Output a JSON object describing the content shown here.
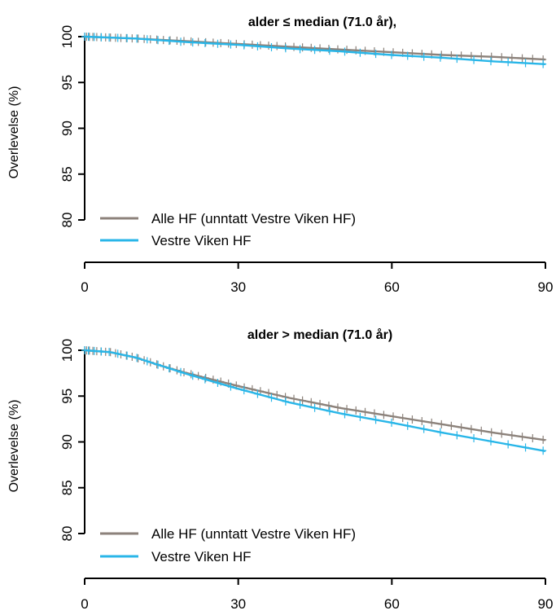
{
  "chart_data": [
    {
      "type": "line",
      "title": "alder ≤ median (71.0 år),",
      "ylabel": "Overlevelse (%)",
      "xlabel": "",
      "xlim": [
        0,
        90
      ],
      "ylim": [
        80,
        100
      ],
      "x_ticks": [
        "0",
        "30",
        "60",
        "90"
      ],
      "y_ticks": [
        "80",
        "85",
        "90",
        "95",
        "100"
      ],
      "legend_position": "bottom-left",
      "grid": false,
      "series": [
        {
          "name": "Alle HF (unntatt Vestre Viken HF)",
          "color": "#8c827b",
          "x": [
            0,
            10,
            20,
            30,
            40,
            50,
            60,
            70,
            80,
            90
          ],
          "y": [
            100,
            99.8,
            99.5,
            99.2,
            98.9,
            98.6,
            98.3,
            98.0,
            97.8,
            97.5
          ]
        },
        {
          "name": "Vestre Viken HF",
          "color": "#29b6e8",
          "x": [
            0,
            10,
            20,
            30,
            40,
            50,
            60,
            70,
            80,
            90
          ],
          "y": [
            100,
            99.8,
            99.4,
            99.1,
            98.7,
            98.4,
            98.0,
            97.7,
            97.3,
            97.0
          ]
        }
      ]
    },
    {
      "type": "line",
      "title": "alder > median (71.0 år)",
      "ylabel": "Overlevelse (%)",
      "xlabel": "",
      "xlim": [
        0,
        90
      ],
      "ylim": [
        80,
        100
      ],
      "x_ticks": [
        "0",
        "30",
        "60",
        "90"
      ],
      "y_ticks": [
        "80",
        "85",
        "90",
        "95",
        "100"
      ],
      "legend_position": "bottom-left",
      "grid": false,
      "series": [
        {
          "name": "Alle HF (unntatt Vestre Viken HF)",
          "color": "#8c827b",
          "x": [
            0,
            5,
            10,
            15,
            20,
            25,
            30,
            40,
            50,
            60,
            70,
            80,
            90
          ],
          "y": [
            100,
            99.8,
            99.2,
            98.3,
            97.5,
            96.8,
            96.1,
            94.8,
            93.7,
            92.8,
            91.9,
            91.0,
            90.2
          ]
        },
        {
          "name": "Vestre Viken HF",
          "color": "#29b6e8",
          "x": [
            0,
            5,
            10,
            15,
            20,
            25,
            30,
            40,
            50,
            60,
            70,
            80,
            90
          ],
          "y": [
            100,
            99.8,
            99.2,
            98.3,
            97.4,
            96.6,
            95.8,
            94.3,
            93.1,
            92.1,
            91.0,
            90.0,
            89.0
          ]
        }
      ]
    }
  ]
}
